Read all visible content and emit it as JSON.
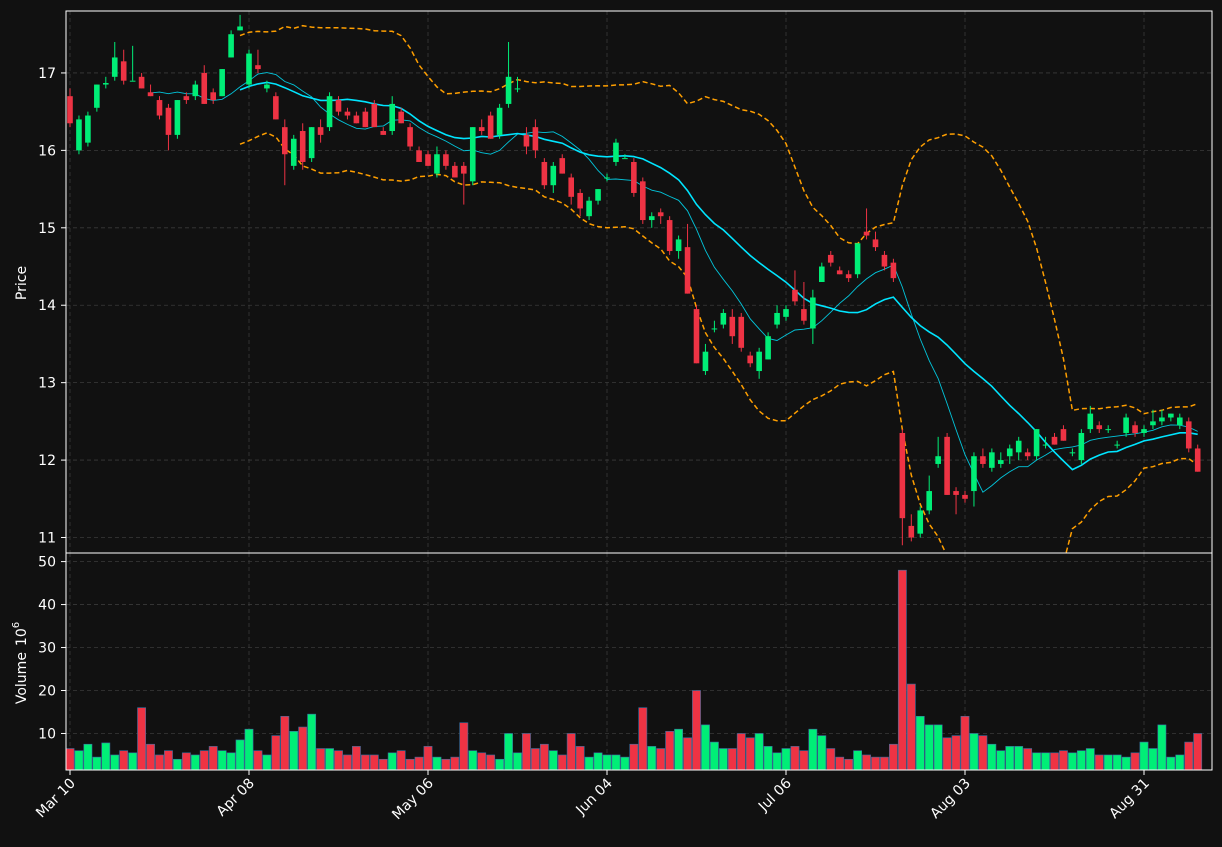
{
  "colors": {
    "background": "#111111",
    "frame": "#ffffff",
    "grid": "#3a3a3a",
    "up": "#00ee77",
    "down": "#ee3344",
    "sma_fast": "#00e5ff",
    "sma_slow": "#00e5ff",
    "bollinger": "#ff9f00",
    "text": "#ffffff"
  },
  "chart_data": {
    "type": "candlestick",
    "price_panel": {
      "ylabel": "Price",
      "ylim": [
        10.8,
        17.8
      ],
      "yticks": [
        11,
        12,
        13,
        14,
        15,
        16,
        17
      ],
      "grid": true
    },
    "volume_panel": {
      "ylabel": "Volume",
      "ylabel_exponent": "10",
      "ylabel_power": "6",
      "ylim": [
        1.5,
        52
      ],
      "yticks": [
        10,
        20,
        30,
        40,
        50
      ],
      "grid": true
    },
    "xticks": [
      {
        "index": 0,
        "label": "Mar 10"
      },
      {
        "index": 20,
        "label": "Apr 08"
      },
      {
        "index": 40,
        "label": "May 06"
      },
      {
        "index": 60,
        "label": "Jun 04"
      },
      {
        "index": 80,
        "label": "Jul 06"
      },
      {
        "index": 100,
        "label": "Aug 03"
      },
      {
        "index": 120,
        "label": "Aug 31"
      }
    ],
    "series_keys": [
      "open",
      "high",
      "low",
      "close",
      "volume"
    ],
    "ohlcv": [
      [
        16.7,
        16.8,
        16.3,
        16.35,
        6.5
      ],
      [
        16.0,
        16.45,
        15.95,
        16.4,
        6.0
      ],
      [
        16.1,
        16.5,
        16.05,
        16.45,
        7.5
      ],
      [
        16.55,
        16.85,
        16.5,
        16.85,
        4.5
      ],
      [
        16.85,
        16.95,
        16.8,
        16.87,
        7.8
      ],
      [
        16.95,
        17.4,
        16.9,
        17.2,
        5.0
      ],
      [
        17.15,
        17.3,
        16.85,
        16.9,
        6.0
      ],
      [
        16.9,
        17.35,
        16.9,
        16.9,
        5.5
      ],
      [
        16.95,
        17.0,
        16.8,
        16.8,
        16.0
      ],
      [
        16.75,
        16.85,
        16.7,
        16.7,
        7.5
      ],
      [
        16.65,
        16.7,
        16.4,
        16.45,
        5.0
      ],
      [
        16.55,
        16.6,
        16.0,
        16.2,
        6.0
      ],
      [
        16.2,
        16.65,
        16.15,
        16.65,
        4.0
      ],
      [
        16.7,
        16.75,
        16.6,
        16.65,
        5.5
      ],
      [
        16.7,
        16.9,
        16.65,
        16.85,
        5.0
      ],
      [
        17.0,
        17.1,
        16.6,
        16.6,
        6.0
      ],
      [
        16.75,
        16.8,
        16.6,
        16.65,
        7.0
      ],
      [
        16.7,
        17.05,
        16.7,
        17.05,
        6.0
      ],
      [
        17.2,
        17.55,
        17.2,
        17.5,
        5.5
      ],
      [
        17.55,
        17.75,
        17.55,
        17.6,
        8.5
      ],
      [
        16.85,
        17.3,
        16.8,
        17.25,
        11.0
      ],
      [
        17.1,
        17.3,
        17.0,
        17.05,
        6.0
      ],
      [
        16.8,
        16.9,
        16.75,
        16.85,
        5.0
      ],
      [
        16.7,
        16.75,
        16.4,
        16.4,
        9.5
      ],
      [
        16.3,
        16.4,
        15.55,
        15.95,
        14.0
      ],
      [
        15.8,
        16.2,
        15.75,
        16.15,
        10.5
      ],
      [
        16.25,
        16.35,
        15.75,
        15.85,
        11.5
      ],
      [
        15.9,
        16.3,
        15.85,
        16.3,
        14.5
      ],
      [
        16.3,
        16.4,
        16.1,
        16.2,
        6.5
      ],
      [
        16.3,
        16.75,
        16.25,
        16.7,
        6.5
      ],
      [
        16.65,
        16.7,
        16.45,
        16.5,
        6.0
      ],
      [
        16.5,
        16.55,
        16.4,
        16.45,
        5.0
      ],
      [
        16.45,
        16.5,
        16.35,
        16.35,
        7.0
      ],
      [
        16.5,
        16.55,
        16.3,
        16.3,
        5.0
      ],
      [
        16.6,
        16.65,
        16.3,
        16.3,
        5.0
      ],
      [
        16.25,
        16.3,
        16.2,
        16.2,
        4.0
      ],
      [
        16.25,
        16.7,
        16.2,
        16.6,
        5.5
      ],
      [
        16.5,
        16.55,
        16.35,
        16.35,
        6.0
      ],
      [
        16.3,
        16.35,
        16.0,
        16.05,
        4.0
      ],
      [
        16.0,
        16.05,
        15.85,
        15.85,
        4.5
      ],
      [
        15.95,
        16.0,
        15.8,
        15.8,
        7.0
      ],
      [
        15.7,
        16.05,
        15.65,
        15.95,
        4.5
      ],
      [
        15.95,
        16.0,
        15.75,
        15.8,
        4.0
      ],
      [
        15.8,
        15.85,
        15.65,
        15.65,
        4.5
      ],
      [
        15.8,
        15.85,
        15.3,
        15.7,
        12.5
      ],
      [
        15.6,
        16.3,
        15.55,
        16.3,
        6.0
      ],
      [
        16.3,
        16.4,
        16.2,
        16.25,
        5.5
      ],
      [
        16.45,
        16.5,
        16.15,
        16.15,
        5.0
      ],
      [
        16.2,
        16.6,
        16.15,
        16.55,
        4.0
      ],
      [
        16.6,
        17.4,
        16.55,
        16.95,
        10.0
      ],
      [
        16.8,
        16.95,
        16.75,
        16.8,
        5.5
      ],
      [
        16.2,
        16.3,
        15.95,
        16.05,
        10.0
      ],
      [
        16.3,
        16.4,
        15.9,
        16.0,
        6.5
      ],
      [
        15.85,
        15.9,
        15.5,
        15.55,
        7.5
      ],
      [
        15.55,
        15.85,
        15.45,
        15.8,
        6.0
      ],
      [
        15.9,
        15.95,
        15.7,
        15.7,
        5.0
      ],
      [
        15.65,
        15.7,
        15.3,
        15.4,
        10.0
      ],
      [
        15.45,
        15.5,
        15.15,
        15.25,
        7.0
      ],
      [
        15.15,
        15.4,
        15.1,
        15.35,
        4.5
      ],
      [
        15.35,
        15.5,
        15.3,
        15.5,
        5.5
      ],
      [
        15.65,
        15.7,
        15.6,
        15.65,
        5.0
      ],
      [
        15.85,
        16.15,
        15.8,
        16.1,
        5.0
      ],
      [
        15.9,
        15.95,
        15.9,
        15.9,
        4.5
      ],
      [
        15.85,
        15.9,
        15.4,
        15.45,
        7.5
      ],
      [
        15.6,
        15.65,
        15.05,
        15.1,
        16.0
      ],
      [
        15.1,
        15.2,
        15.0,
        15.15,
        7.0
      ],
      [
        15.2,
        15.25,
        15.05,
        15.15,
        6.5
      ],
      [
        15.1,
        15.15,
        14.65,
        14.7,
        10.5
      ],
      [
        14.7,
        14.9,
        14.6,
        14.85,
        11.0
      ],
      [
        14.75,
        15.05,
        14.15,
        14.15,
        9.0
      ],
      [
        13.95,
        14.0,
        13.25,
        13.25,
        20.0
      ],
      [
        13.15,
        13.5,
        13.1,
        13.4,
        12.0
      ],
      [
        13.7,
        13.8,
        13.65,
        13.7,
        8.0
      ],
      [
        13.75,
        13.95,
        13.7,
        13.9,
        6.5
      ],
      [
        13.85,
        13.95,
        13.5,
        13.6,
        6.5
      ],
      [
        13.85,
        13.9,
        13.4,
        13.45,
        10.0
      ],
      [
        13.35,
        13.4,
        13.2,
        13.25,
        9.0
      ],
      [
        13.15,
        13.45,
        13.05,
        13.4,
        10.0
      ],
      [
        13.3,
        13.65,
        13.3,
        13.6,
        7.0
      ],
      [
        13.75,
        14.0,
        13.7,
        13.9,
        5.5
      ],
      [
        13.85,
        14.0,
        13.8,
        13.95,
        6.5
      ],
      [
        14.2,
        14.45,
        14.0,
        14.05,
        7.0
      ],
      [
        13.95,
        14.3,
        13.75,
        13.8,
        6.0
      ],
      [
        13.7,
        14.2,
        13.5,
        14.1,
        11.0
      ],
      [
        14.3,
        14.55,
        14.3,
        14.5,
        9.5
      ],
      [
        14.65,
        14.7,
        14.5,
        14.55,
        6.5
      ],
      [
        14.45,
        14.5,
        14.4,
        14.4,
        4.5
      ],
      [
        14.4,
        14.45,
        14.3,
        14.35,
        4.0
      ],
      [
        14.4,
        14.8,
        14.35,
        14.8,
        6.0
      ],
      [
        14.95,
        15.25,
        14.85,
        14.9,
        5.0
      ],
      [
        14.85,
        14.95,
        14.7,
        14.75,
        4.5
      ],
      [
        14.65,
        14.7,
        14.45,
        14.5,
        4.5
      ],
      [
        14.55,
        14.6,
        14.3,
        14.35,
        7.5
      ],
      [
        12.35,
        12.4,
        10.9,
        11.25,
        48.0
      ],
      [
        11.15,
        11.3,
        10.95,
        11.0,
        21.5
      ],
      [
        11.05,
        11.4,
        11.0,
        11.35,
        14.0
      ],
      [
        11.35,
        11.8,
        11.3,
        11.6,
        12.0
      ],
      [
        11.95,
        12.3,
        11.9,
        12.05,
        12.0
      ],
      [
        12.3,
        12.35,
        11.55,
        11.55,
        9.0
      ],
      [
        11.6,
        11.65,
        11.3,
        11.55,
        9.5
      ],
      [
        11.55,
        11.6,
        11.45,
        11.5,
        14.0
      ],
      [
        11.6,
        12.1,
        11.4,
        12.05,
        10.0
      ],
      [
        12.05,
        12.15,
        11.9,
        11.95,
        9.5
      ],
      [
        11.9,
        12.15,
        11.85,
        12.1,
        7.5
      ],
      [
        11.95,
        12.1,
        11.9,
        12.0,
        6.0
      ],
      [
        12.05,
        12.2,
        11.95,
        12.15,
        7.0
      ],
      [
        12.1,
        12.3,
        12.0,
        12.25,
        7.0
      ],
      [
        12.1,
        12.15,
        12.0,
        12.05,
        6.5
      ],
      [
        12.05,
        12.4,
        12.0,
        12.4,
        5.5
      ],
      [
        12.2,
        12.3,
        12.15,
        12.2,
        5.5
      ],
      [
        12.3,
        12.35,
        12.2,
        12.2,
        5.5
      ],
      [
        12.4,
        12.45,
        12.25,
        12.25,
        6.0
      ],
      [
        12.1,
        12.15,
        12.05,
        12.1,
        5.5
      ],
      [
        12.0,
        12.4,
        11.95,
        12.35,
        6.0
      ],
      [
        12.4,
        12.7,
        12.35,
        12.6,
        6.5
      ],
      [
        12.45,
        12.5,
        12.35,
        12.4,
        5.0
      ],
      [
        12.4,
        12.45,
        12.35,
        12.4,
        5.0
      ],
      [
        12.2,
        12.25,
        12.15,
        12.2,
        5.0
      ],
      [
        12.35,
        12.6,
        12.3,
        12.55,
        4.5
      ],
      [
        12.45,
        12.5,
        12.3,
        12.35,
        5.5
      ],
      [
        12.35,
        12.45,
        12.3,
        12.4,
        8.0
      ],
      [
        12.45,
        12.65,
        12.4,
        12.5,
        6.5
      ],
      [
        12.5,
        12.65,
        12.45,
        12.55,
        12.0
      ],
      [
        12.55,
        12.6,
        12.5,
        12.6,
        4.5
      ],
      [
        12.45,
        12.6,
        12.4,
        12.55,
        5.0
      ],
      [
        12.5,
        12.55,
        12.1,
        12.15,
        8.0
      ],
      [
        12.15,
        12.2,
        11.85,
        11.85,
        10.0
      ]
    ],
    "moving_averages": [
      "fast",
      "slow"
    ],
    "bollinger_bands": {
      "upper_note": "",
      "lower_note": ""
    }
  }
}
